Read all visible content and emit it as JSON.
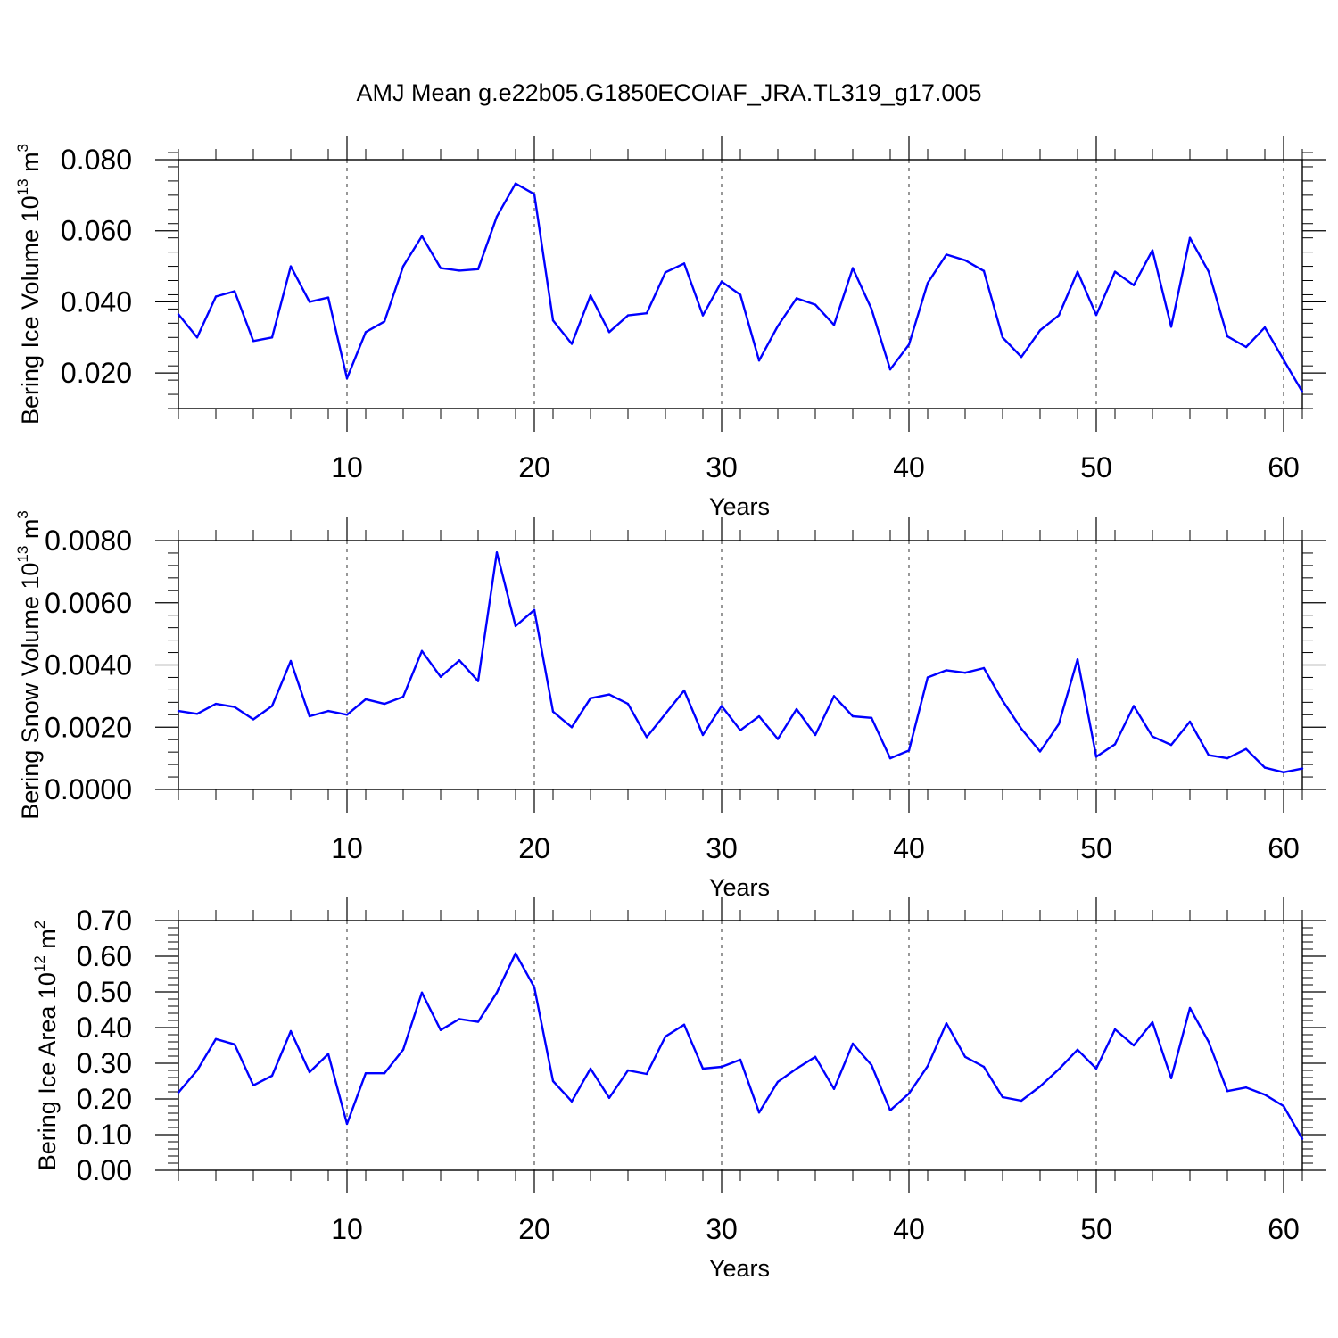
{
  "title": "AMJ Mean g.e22b05.G1850ECOIAF_JRA.TL319_g17.005",
  "chart_data": [
    {
      "type": "line",
      "title": "",
      "xlabel": "Years",
      "ylabel": "Bering Ice Volume 10",
      "ylabel_exp": "13",
      "ylabel_unit": " m",
      "ylabel_unit_exp": "3",
      "xlim": [
        1,
        61
      ],
      "ylim": [
        0.01,
        0.08
      ],
      "yticks": [
        0.02,
        0.04,
        0.06,
        0.08
      ],
      "ytick_labels": [
        "0.020",
        "0.040",
        "0.060",
        "0.080"
      ],
      "yminor_step": 0.004,
      "xticks": [
        10,
        20,
        30,
        40,
        50,
        60
      ],
      "xtick_labels": [
        "10",
        "20",
        "30",
        "40",
        "50",
        "60"
      ],
      "grid": "vertical dashed at major x ticks",
      "line_color": "#0000ff",
      "x_start": 1,
      "values": [
        0.0365,
        0.03,
        0.0415,
        0.043,
        0.029,
        0.03,
        0.05,
        0.04,
        0.0412,
        0.0185,
        0.0315,
        0.0345,
        0.05,
        0.0585,
        0.0495,
        0.0488,
        0.0492,
        0.064,
        0.0733,
        0.0703,
        0.0348,
        0.0282,
        0.0418,
        0.0315,
        0.0362,
        0.0368,
        0.0483,
        0.0508,
        0.0362,
        0.0457,
        0.042,
        0.0235,
        0.0332,
        0.041,
        0.0392,
        0.0335,
        0.0495,
        0.038,
        0.021,
        0.028,
        0.0453,
        0.0533,
        0.0517,
        0.0487,
        0.03,
        0.0245,
        0.032,
        0.0362,
        0.0485,
        0.0363,
        0.0485,
        0.0447,
        0.0545,
        0.033,
        0.058,
        0.0485,
        0.0303,
        0.0273,
        0.0328,
        0.0237,
        0.0147
      ]
    },
    {
      "type": "line",
      "title": "",
      "xlabel": "Years",
      "ylabel": "Bering Snow Volume 10",
      "ylabel_exp": "13",
      "ylabel_unit": " m",
      "ylabel_unit_exp": "3",
      "xlim": [
        1,
        61
      ],
      "ylim": [
        0.0,
        0.008
      ],
      "yticks": [
        0.0,
        0.002,
        0.004,
        0.006,
        0.008
      ],
      "ytick_labels": [
        "0.0000",
        "0.0020",
        "0.0040",
        "0.0060",
        "0.0080"
      ],
      "yminor_step": 0.0004,
      "xticks": [
        10,
        20,
        30,
        40,
        50,
        60
      ],
      "xtick_labels": [
        "10",
        "20",
        "30",
        "40",
        "50",
        "60"
      ],
      "grid": "vertical dashed at major x ticks",
      "line_color": "#0000ff",
      "x_start": 1,
      "values": [
        0.00252,
        0.00243,
        0.00275,
        0.00265,
        0.00225,
        0.00268,
        0.00413,
        0.00235,
        0.00252,
        0.0024,
        0.0029,
        0.00275,
        0.00298,
        0.00445,
        0.00362,
        0.00415,
        0.00348,
        0.00762,
        0.00525,
        0.00577,
        0.0025,
        0.002,
        0.00293,
        0.00305,
        0.00275,
        0.00168,
        0.00243,
        0.00318,
        0.00175,
        0.00268,
        0.0019,
        0.00235,
        0.00162,
        0.00258,
        0.00175,
        0.003,
        0.00235,
        0.0023,
        0.001,
        0.00125,
        0.0036,
        0.00383,
        0.00375,
        0.0039,
        0.00285,
        0.00195,
        0.00122,
        0.0021,
        0.00418,
        0.00105,
        0.00145,
        0.00268,
        0.0017,
        0.00143,
        0.00218,
        0.0011,
        0.001,
        0.0013,
        0.0007,
        0.00055,
        0.00067
      ]
    },
    {
      "type": "line",
      "title": "",
      "xlabel": "Years",
      "ylabel": "Bering Ice Area 10",
      "ylabel_exp": "12",
      "ylabel_unit": " m",
      "ylabel_unit_exp": "2",
      "xlim": [
        1,
        61
      ],
      "ylim": [
        0.0,
        0.7
      ],
      "yticks": [
        0.0,
        0.1,
        0.2,
        0.3,
        0.4,
        0.5,
        0.6,
        0.7
      ],
      "ytick_labels": [
        "0.00",
        "0.10",
        "0.20",
        "0.30",
        "0.40",
        "0.50",
        "0.60",
        "0.70"
      ],
      "yminor_step": 0.02,
      "xticks": [
        10,
        20,
        30,
        40,
        50,
        60
      ],
      "xtick_labels": [
        "10",
        "20",
        "30",
        "40",
        "50",
        "60"
      ],
      "grid": "vertical dashed at major x ticks",
      "line_color": "#0000ff",
      "x_start": 1,
      "values": [
        0.218,
        0.28,
        0.368,
        0.353,
        0.238,
        0.265,
        0.39,
        0.275,
        0.326,
        0.13,
        0.272,
        0.272,
        0.338,
        0.498,
        0.393,
        0.424,
        0.416,
        0.498,
        0.608,
        0.513,
        0.25,
        0.193,
        0.285,
        0.203,
        0.28,
        0.27,
        0.375,
        0.408,
        0.285,
        0.29,
        0.31,
        0.162,
        0.248,
        0.285,
        0.318,
        0.228,
        0.355,
        0.295,
        0.168,
        0.215,
        0.292,
        0.412,
        0.318,
        0.29,
        0.205,
        0.195,
        0.235,
        0.283,
        0.338,
        0.285,
        0.395,
        0.35,
        0.415,
        0.258,
        0.455,
        0.36,
        0.222,
        0.232,
        0.212,
        0.18,
        0.088
      ]
    }
  ]
}
